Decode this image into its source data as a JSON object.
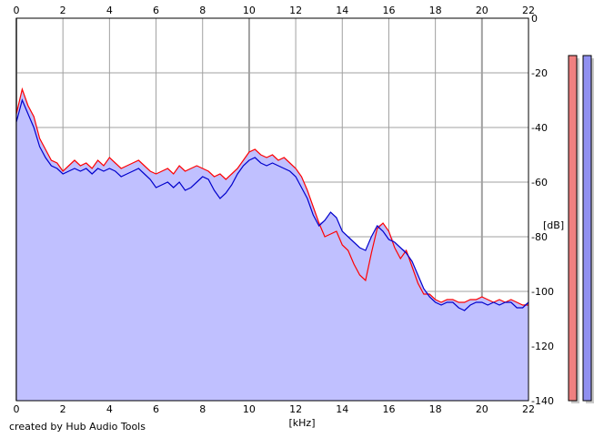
{
  "chart_data": {
    "type": "area",
    "title": "",
    "xlabel": "[kHz]",
    "ylabel": "[dB]",
    "xlim": [
      0,
      22
    ],
    "ylim": [
      -140,
      0
    ],
    "x_ticks": [
      "0",
      "2",
      "4",
      "6",
      "8",
      "10",
      "12",
      "14",
      "16",
      "18",
      "20",
      "22"
    ],
    "y_ticks": [
      "0",
      "-20",
      "-40",
      "-60",
      "-80",
      "-100",
      "-120",
      "-140"
    ],
    "grid": true,
    "legend": "none",
    "colors": {
      "fill": "#c0c0ff",
      "red_series": "#ff0000",
      "blue_series": "#0000cc",
      "grid": "#a0a0a0",
      "meter_left": "#f08080",
      "meter_right": "#9090f0"
    },
    "series": [
      {
        "color": "red",
        "x": [
          0,
          0.25,
          0.5,
          0.75,
          1,
          1.25,
          1.5,
          1.75,
          2,
          2.25,
          2.5,
          2.75,
          3,
          3.25,
          3.5,
          3.75,
          4,
          4.25,
          4.5,
          4.75,
          5,
          5.25,
          5.5,
          5.75,
          6,
          6.25,
          6.5,
          6.75,
          7,
          7.25,
          7.5,
          7.75,
          8,
          8.25,
          8.5,
          8.75,
          9,
          9.25,
          9.5,
          9.75,
          10,
          10.25,
          10.5,
          10.75,
          11,
          11.25,
          11.5,
          11.75,
          12,
          12.25,
          12.5,
          12.75,
          13,
          13.25,
          13.5,
          13.75,
          14,
          14.25,
          14.5,
          14.75,
          15,
          15.25,
          15.5,
          15.75,
          16,
          16.25,
          16.5,
          16.75,
          17,
          17.25,
          17.5,
          17.75,
          18,
          18.25,
          18.5,
          18.75,
          19,
          19.25,
          19.5,
          19.75,
          20,
          20.25,
          20.5,
          20.75,
          21,
          21.25,
          21.5,
          21.75,
          22
        ],
        "y": [
          -35,
          -26,
          -32,
          -36,
          -44,
          -48,
          -52,
          -53,
          -56,
          -54,
          -52,
          -54,
          -53,
          -55,
          -52,
          -54,
          -51,
          -53,
          -55,
          -54,
          -53,
          -52,
          -54,
          -56,
          -57,
          -56,
          -55,
          -57,
          -54,
          -56,
          -55,
          -54,
          -55,
          -56,
          -58,
          -57,
          -59,
          -57,
          -55,
          -52,
          -49,
          -48,
          -50,
          -51,
          -50,
          -52,
          -51,
          -53,
          -55,
          -58,
          -63,
          -69,
          -75,
          -80,
          -79,
          -78,
          -83,
          -85,
          -90,
          -94,
          -96,
          -86,
          -77,
          -75,
          -78,
          -84,
          -88,
          -85,
          -91,
          -97,
          -101,
          -101,
          -103,
          -104,
          -103,
          -103,
          -104,
          -104,
          -103,
          -103,
          -102,
          -103,
          -104,
          -103,
          -104,
          -103,
          -104,
          -105,
          -105
        ]
      },
      {
        "color": "blue",
        "x": [
          0,
          0.25,
          0.5,
          0.75,
          1,
          1.25,
          1.5,
          1.75,
          2,
          2.25,
          2.5,
          2.75,
          3,
          3.25,
          3.5,
          3.75,
          4,
          4.25,
          4.5,
          4.75,
          5,
          5.25,
          5.5,
          5.75,
          6,
          6.25,
          6.5,
          6.75,
          7,
          7.25,
          7.5,
          7.75,
          8,
          8.25,
          8.5,
          8.75,
          9,
          9.25,
          9.5,
          9.75,
          10,
          10.25,
          10.5,
          10.75,
          11,
          11.25,
          11.5,
          11.75,
          12,
          12.25,
          12.5,
          12.75,
          13,
          13.25,
          13.5,
          13.75,
          14,
          14.25,
          14.5,
          14.75,
          15,
          15.25,
          15.5,
          15.75,
          16,
          16.25,
          16.5,
          16.75,
          17,
          17.25,
          17.5,
          17.75,
          18,
          18.25,
          18.5,
          18.75,
          19,
          19.25,
          19.5,
          19.75,
          20,
          20.25,
          20.5,
          20.75,
          21,
          21.25,
          21.5,
          21.75,
          22
        ],
        "y": [
          -38,
          -30,
          -35,
          -40,
          -47,
          -51,
          -54,
          -55,
          -57,
          -56,
          -55,
          -56,
          -55,
          -57,
          -55,
          -56,
          -55,
          -56,
          -58,
          -57,
          -56,
          -55,
          -57,
          -59,
          -62,
          -61,
          -60,
          -62,
          -60,
          -63,
          -62,
          -60,
          -58,
          -59,
          -63,
          -66,
          -64,
          -61,
          -57,
          -54,
          -52,
          -51,
          -53,
          -54,
          -53,
          -54,
          -55,
          -56,
          -58,
          -62,
          -66,
          -72,
          -76,
          -74,
          -71,
          -73,
          -78,
          -80,
          -82,
          -84,
          -85,
          -80,
          -76,
          -78,
          -81,
          -82,
          -84,
          -86,
          -89,
          -94,
          -99,
          -102,
          -104,
          -105,
          -104,
          -104,
          -106,
          -107,
          -105,
          -104,
          -104,
          -105,
          -104,
          -105,
          -104,
          -104,
          -106,
          -106,
          -104
        ]
      }
    ],
    "level_meters": [
      {
        "name": "left",
        "value_db": -7
      },
      {
        "name": "right",
        "value_db": -7
      }
    ]
  },
  "footer": {
    "credit": "created by Hub Audio Tools"
  }
}
